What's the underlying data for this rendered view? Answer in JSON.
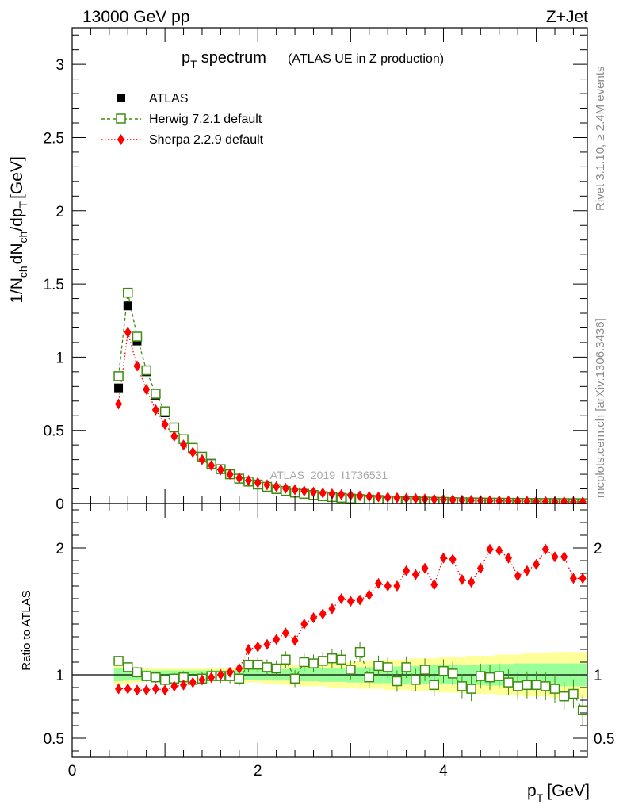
{
  "header": {
    "energy_label": "13000 GeV pp",
    "process_label": "Z+Jet"
  },
  "side_labels": {
    "rivet": "Rivet 3.1.10, ≥ 2.4M events",
    "mcplots": "mcplots.cern.ch [arXiv:1306.3436]"
  },
  "chart_data": [
    {
      "type": "scatter",
      "title_main": "p",
      "title_sub": "T",
      "title_word": "spectrum",
      "subtitle": "(ATLAS UE in Z production)",
      "watermark": "ATLAS_2019_I1736531",
      "ylabel": "1/N_ch dN_ch/dp_T [GeV]",
      "ylim": [
        0,
        3.25
      ],
      "xlim": [
        0,
        5.55
      ],
      "yticks": [
        0,
        0.5,
        1,
        1.5,
        2,
        2.5,
        3
      ],
      "ytick_labels": [
        "0",
        "0.5",
        "1",
        "1.5",
        "2",
        "2.5",
        "3"
      ],
      "legend_position": "top-left",
      "x": [
        0.5,
        0.6,
        0.7,
        0.8,
        0.9,
        1.0,
        1.1,
        1.2,
        1.3,
        1.4,
        1.5,
        1.6,
        1.7,
        1.8,
        1.9,
        2.0,
        2.1,
        2.2,
        2.3,
        2.4,
        2.5,
        2.6,
        2.7,
        2.8,
        2.9,
        3.0,
        3.1,
        3.2,
        3.3,
        3.4,
        3.5,
        3.6,
        3.7,
        3.8,
        3.9,
        4.0,
        4.1,
        4.2,
        4.3,
        4.4,
        4.5,
        4.6,
        4.7,
        4.8,
        4.9,
        5.0,
        5.1,
        5.2,
        5.3,
        5.4,
        5.5
      ],
      "series": [
        {
          "name": "ATLAS",
          "style": "data",
          "color": "#000000",
          "values": [
            0.79,
            1.35,
            1.11,
            0.9,
            0.74,
            0.62,
            0.52,
            0.44,
            0.38,
            0.32,
            0.275,
            0.235,
            0.2,
            0.172,
            0.148,
            0.128,
            0.11,
            0.096,
            0.083,
            0.072,
            0.063,
            0.055,
            0.048,
            0.042,
            0.037,
            0.033,
            0.029,
            0.026,
            0.023,
            0.02,
            0.018,
            0.016,
            0.0145,
            0.013,
            0.0115,
            0.0103,
            0.0093,
            0.0083,
            0.0075,
            0.0067,
            0.006,
            0.0054,
            0.0049,
            0.0044,
            0.004,
            0.0036,
            0.0033,
            0.003,
            0.0027,
            0.0024,
            0.0022
          ]
        },
        {
          "name": "Herwig 7.2.1 default",
          "style": "square-dashed",
          "color": "#3d8c10",
          "values": [
            0.87,
            1.44,
            1.14,
            0.91,
            0.75,
            0.63,
            0.52,
            0.44,
            0.38,
            0.32,
            0.27,
            0.235,
            0.2,
            0.17,
            0.15,
            0.13,
            0.114,
            0.099,
            0.086,
            0.075,
            0.066,
            0.058,
            0.05,
            0.044,
            0.039,
            0.034,
            0.03,
            0.027,
            0.024,
            0.021,
            0.019,
            0.017,
            0.015,
            0.013,
            0.012,
            0.011,
            0.009,
            0.008,
            0.0075,
            0.007,
            0.006,
            0.0055,
            0.005,
            0.0045,
            0.004,
            0.0036,
            0.0033,
            0.003,
            0.0027,
            0.0024,
            0.0022
          ]
        },
        {
          "name": "Sherpa 2.2.9 default",
          "style": "diamond-dotted",
          "color": "#ff0000",
          "values": [
            0.68,
            1.17,
            0.94,
            0.78,
            0.64,
            0.54,
            0.46,
            0.4,
            0.35,
            0.3,
            0.26,
            0.23,
            0.2,
            0.175,
            0.158,
            0.143,
            0.128,
            0.115,
            0.104,
            0.094,
            0.086,
            0.078,
            0.072,
            0.066,
            0.061,
            0.056,
            0.052,
            0.048,
            0.045,
            0.042,
            0.039,
            0.036,
            0.034,
            0.031,
            0.029,
            0.027,
            0.025,
            0.023,
            0.022,
            0.02,
            0.019,
            0.018,
            0.017,
            0.016,
            0.015,
            0.014,
            0.013,
            0.0125,
            0.012,
            0.011,
            0.0105
          ]
        }
      ]
    },
    {
      "type": "scatter",
      "ylabel": "Ratio to ATLAS",
      "xlabel": "p_T [GeV]",
      "xlim": [
        0,
        5.55
      ],
      "ylim": [
        0.35,
        2.35
      ],
      "xticks": [
        0,
        2,
        4
      ],
      "xtick_labels": [
        "0",
        "2",
        "4"
      ],
      "yticks": [
        0.5,
        1,
        2
      ],
      "ytick_labels": [
        "0.5",
        "1",
        "2"
      ],
      "reference_line": 1,
      "x": [
        0.5,
        0.6,
        0.7,
        0.8,
        0.9,
        1.0,
        1.1,
        1.2,
        1.3,
        1.4,
        1.5,
        1.6,
        1.7,
        1.8,
        1.9,
        2.0,
        2.1,
        2.2,
        2.3,
        2.4,
        2.5,
        2.6,
        2.7,
        2.8,
        2.9,
        3.0,
        3.1,
        3.2,
        3.3,
        3.4,
        3.5,
        3.6,
        3.7,
        3.8,
        3.9,
        4.0,
        4.1,
        4.2,
        4.3,
        4.4,
        4.5,
        4.6,
        4.7,
        4.8,
        4.9,
        5.0,
        5.1,
        5.2,
        5.3,
        5.4,
        5.5
      ],
      "uncertainty_bands": {
        "yellow_color": "#ffff99",
        "green_color": "#99ff99",
        "yellow_half_width": [
          0.08,
          0.07,
          0.06,
          0.05,
          0.05,
          0.05,
          0.05,
          0.05,
          0.05,
          0.05,
          0.05,
          0.05,
          0.05,
          0.05,
          0.06,
          0.06,
          0.07,
          0.07,
          0.08,
          0.08,
          0.09,
          0.09,
          0.09,
          0.1,
          0.1,
          0.1,
          0.11,
          0.11,
          0.11,
          0.12,
          0.12,
          0.12,
          0.13,
          0.13,
          0.13,
          0.14,
          0.14,
          0.14,
          0.15,
          0.15,
          0.15,
          0.16,
          0.16,
          0.16,
          0.17,
          0.17,
          0.17,
          0.18,
          0.18,
          0.18,
          0.18
        ],
        "green_half_width": [
          0.05,
          0.045,
          0.04,
          0.035,
          0.035,
          0.035,
          0.035,
          0.035,
          0.035,
          0.035,
          0.035,
          0.035,
          0.035,
          0.035,
          0.04,
          0.04,
          0.04,
          0.045,
          0.045,
          0.05,
          0.05,
          0.05,
          0.055,
          0.055,
          0.055,
          0.06,
          0.06,
          0.06,
          0.065,
          0.065,
          0.065,
          0.07,
          0.07,
          0.07,
          0.075,
          0.075,
          0.075,
          0.08,
          0.08,
          0.08,
          0.085,
          0.085,
          0.085,
          0.09,
          0.09,
          0.09,
          0.09,
          0.09,
          0.09,
          0.09,
          0.09
        ]
      },
      "series": [
        {
          "name": "Herwig 7.2.1 default",
          "style": "square-dashed",
          "color": "#3d8c10",
          "values": [
            1.11,
            1.06,
            1.02,
            0.99,
            0.98,
            0.96,
            0.97,
            0.98,
            0.96,
            0.97,
            0.99,
            0.99,
            0.99,
            0.97,
            1.08,
            1.08,
            1.06,
            1.05,
            1.12,
            0.97,
            1.1,
            1.09,
            1.11,
            1.13,
            1.12,
            1.04,
            1.18,
            0.98,
            1.07,
            1.06,
            0.95,
            1.06,
            0.96,
            1.04,
            0.92,
            1.03,
            1.01,
            0.91,
            0.89,
            0.99,
            0.98,
            0.99,
            0.94,
            0.91,
            0.92,
            0.92,
            0.91,
            0.89,
            0.83,
            0.85,
            0.72
          ]
        },
        {
          "name": "Sherpa 2.2.9 default",
          "style": "diamond-dotted",
          "color": "#ff0000",
          "values": [
            0.89,
            0.89,
            0.88,
            0.88,
            0.89,
            0.88,
            0.91,
            0.92,
            0.94,
            0.96,
            0.98,
            1.0,
            1.02,
            1.05,
            1.2,
            1.22,
            1.24,
            1.28,
            1.33,
            1.27,
            1.4,
            1.45,
            1.48,
            1.52,
            1.6,
            1.58,
            1.59,
            1.63,
            1.72,
            1.7,
            1.7,
            1.82,
            1.79,
            1.84,
            1.71,
            1.92,
            1.91,
            1.75,
            1.73,
            1.84,
            1.99,
            1.98,
            1.92,
            1.78,
            1.82,
            1.87,
            1.99,
            1.93,
            1.93,
            1.76,
            1.76
          ]
        }
      ]
    }
  ]
}
